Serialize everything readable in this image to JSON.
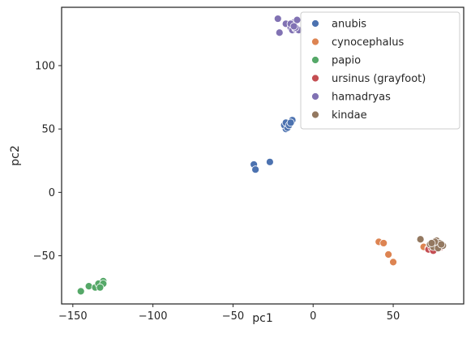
{
  "chart_data": {
    "type": "scatter",
    "xlabel": "pc1",
    "ylabel": "pc2",
    "xlim": [
      -157,
      94
    ],
    "ylim": [
      -88,
      146
    ],
    "xticks": [
      -150,
      -100,
      -50,
      0,
      50
    ],
    "yticks": [
      -50,
      0,
      50,
      100
    ],
    "xtick_labels": [
      "−150",
      "−100",
      "−50",
      "0",
      "50"
    ],
    "ytick_labels": [
      "−50",
      "0",
      "50",
      "100"
    ],
    "grid": false,
    "legend_position": "top-right",
    "series": [
      {
        "name": "anubis",
        "color": "#4c72b0",
        "x": [
          -37,
          -36,
          -27,
          -13,
          -15,
          -16,
          -17,
          -18,
          -16,
          -17,
          -15,
          -14
        ],
        "y": [
          22,
          18,
          24,
          57,
          54,
          52,
          50,
          53,
          51,
          55,
          53,
          55
        ]
      },
      {
        "name": "cynocephalus",
        "color": "#dd8452",
        "x": [
          41,
          44,
          47,
          50,
          69,
          72
        ],
        "y": [
          -39,
          -40,
          -49,
          -55,
          -43,
          -44
        ]
      },
      {
        "name": "papio",
        "color": "#55a868",
        "x": [
          -145,
          -140,
          -136,
          -133,
          -132,
          -131,
          -134,
          -131,
          -133
        ],
        "y": [
          -78,
          -74,
          -75,
          -74,
          -72,
          -70,
          -72,
          -72,
          -75
        ]
      },
      {
        "name": "ursinus (grayfoot)",
        "color": "#c44e52",
        "x": [
          72,
          74,
          76,
          78,
          80,
          75,
          77
        ],
        "y": [
          -45,
          -44,
          -45,
          -44,
          -43,
          -46,
          -43
        ]
      },
      {
        "name": "hamadryas",
        "color": "#8172b3",
        "x": [
          -22,
          -21,
          -17,
          -14,
          -13,
          -12,
          -11,
          -10,
          -9,
          -14,
          -11,
          -12
        ],
        "y": [
          137,
          126,
          133,
          130,
          128,
          134,
          129,
          136,
          128,
          133,
          130,
          131
        ]
      },
      {
        "name": "kindae",
        "color": "#937860",
        "x": [
          67,
          73,
          75,
          77,
          79,
          81,
          78,
          76,
          80,
          74
        ],
        "y": [
          -37,
          -41,
          -43,
          -38,
          -40,
          -42,
          -44,
          -39,
          -41,
          -40
        ]
      }
    ]
  }
}
